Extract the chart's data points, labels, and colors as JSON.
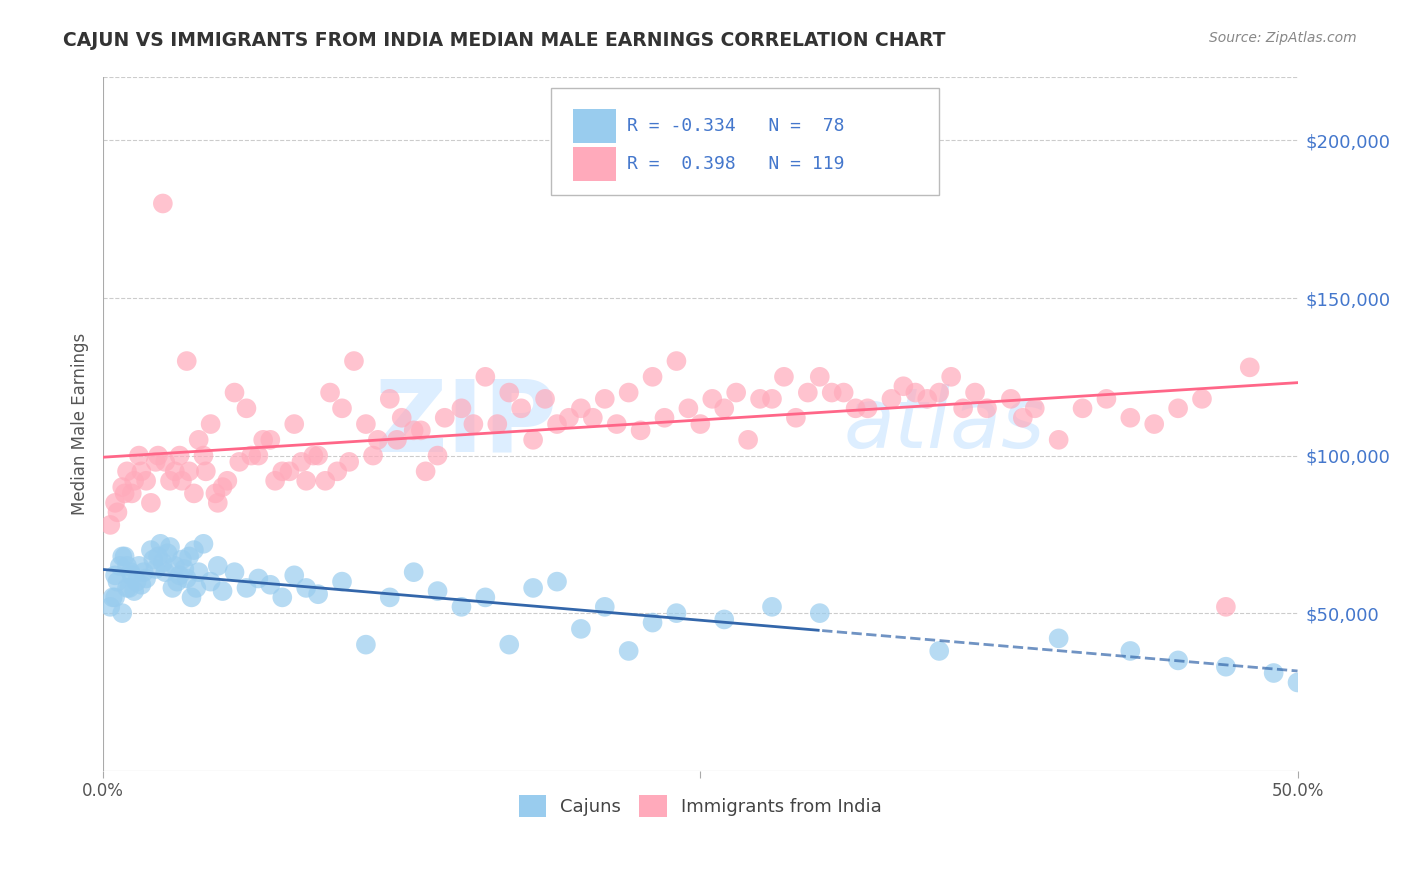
{
  "title": "CAJUN VS IMMIGRANTS FROM INDIA MEDIAN MALE EARNINGS CORRELATION CHART",
  "source_text": "Source: ZipAtlas.com",
  "ylabel": "Median Male Earnings",
  "ytick_values": [
    50000,
    100000,
    150000,
    200000
  ],
  "xlim": [
    0.0,
    50.0
  ],
  "ylim": [
    0,
    220000
  ],
  "cajun_R": -0.334,
  "cajun_N": 78,
  "india_R": 0.398,
  "india_N": 119,
  "cajun_color": "#99CCEE",
  "india_color": "#FFAABB",
  "cajun_line_color": "#3366AA",
  "india_line_color": "#FF6688",
  "background_color": "#FFFFFF",
  "grid_color": "#CCCCCC",
  "title_color": "#333333",
  "axis_label_color": "#4477CC",
  "watermark_color": "#DDEEFF",
  "legend_text_color": "#4477CC",
  "cajun_scatter_x": [
    0.3,
    0.4,
    0.5,
    0.5,
    0.6,
    0.7,
    0.8,
    0.8,
    0.9,
    1.0,
    1.0,
    1.1,
    1.15,
    1.2,
    1.3,
    1.4,
    1.5,
    1.6,
    1.7,
    1.8,
    2.0,
    2.1,
    2.2,
    2.3,
    2.4,
    2.5,
    2.6,
    2.7,
    2.8,
    2.9,
    3.0,
    3.1,
    3.2,
    3.3,
    3.4,
    3.5,
    3.6,
    3.7,
    3.8,
    3.9,
    4.0,
    4.2,
    4.5,
    4.8,
    5.0,
    5.5,
    6.0,
    6.5,
    7.0,
    7.5,
    8.0,
    8.5,
    9.0,
    10.0,
    11.0,
    12.0,
    13.0,
    14.0,
    15.0,
    16.0,
    17.0,
    18.0,
    19.0,
    20.0,
    22.0,
    24.0,
    26.0,
    28.0,
    30.0,
    35.0,
    40.0,
    43.0,
    45.0,
    47.0,
    49.0,
    50.0,
    21.0,
    23.0
  ],
  "cajun_scatter_y": [
    52000,
    55000,
    55000,
    62000,
    60000,
    65000,
    50000,
    68000,
    68000,
    58000,
    65000,
    58000,
    63000,
    62000,
    57000,
    60000,
    65000,
    59000,
    63000,
    61000,
    70000,
    67000,
    64000,
    68000,
    72000,
    66000,
    63000,
    69000,
    71000,
    58000,
    65000,
    60000,
    62000,
    67000,
    64000,
    61000,
    68000,
    55000,
    70000,
    58000,
    63000,
    72000,
    60000,
    65000,
    57000,
    63000,
    58000,
    61000,
    59000,
    55000,
    62000,
    58000,
    56000,
    60000,
    40000,
    55000,
    63000,
    57000,
    52000,
    55000,
    40000,
    58000,
    60000,
    45000,
    38000,
    50000,
    48000,
    52000,
    50000,
    38000,
    42000,
    38000,
    35000,
    33000,
    31000,
    28000,
    52000,
    47000
  ],
  "india_scatter_x": [
    0.3,
    0.5,
    0.6,
    0.8,
    0.9,
    1.0,
    1.2,
    1.3,
    1.5,
    1.6,
    1.8,
    2.0,
    2.2,
    2.3,
    2.5,
    2.6,
    2.8,
    3.0,
    3.2,
    3.3,
    3.5,
    3.6,
    3.8,
    4.0,
    4.2,
    4.3,
    4.5,
    4.7,
    4.8,
    5.0,
    5.2,
    5.5,
    5.7,
    6.0,
    6.2,
    6.5,
    6.7,
    7.0,
    7.2,
    7.5,
    7.8,
    8.0,
    8.3,
    8.5,
    8.8,
    9.0,
    9.3,
    9.5,
    9.8,
    10.0,
    10.3,
    10.5,
    11.0,
    11.3,
    11.5,
    12.0,
    12.3,
    12.5,
    13.0,
    13.3,
    13.5,
    14.0,
    14.3,
    15.0,
    15.5,
    16.0,
    16.5,
    17.0,
    17.5,
    18.0,
    18.5,
    19.0,
    19.5,
    20.0,
    20.5,
    21.0,
    21.5,
    22.0,
    22.5,
    23.0,
    23.5,
    24.0,
    24.5,
    25.0,
    25.5,
    26.0,
    26.5,
    27.0,
    27.5,
    28.0,
    28.5,
    29.0,
    29.5,
    30.0,
    30.5,
    31.0,
    31.5,
    32.0,
    33.0,
    33.5,
    34.0,
    34.5,
    35.0,
    35.5,
    36.0,
    36.5,
    37.0,
    38.0,
    38.5,
    39.0,
    40.0,
    41.0,
    42.0,
    43.0,
    44.0,
    45.0,
    46.0,
    47.0,
    48.0
  ],
  "india_scatter_y": [
    78000,
    85000,
    82000,
    90000,
    88000,
    95000,
    88000,
    92000,
    100000,
    95000,
    92000,
    85000,
    98000,
    100000,
    180000,
    98000,
    92000,
    95000,
    100000,
    92000,
    130000,
    95000,
    88000,
    105000,
    100000,
    95000,
    110000,
    88000,
    85000,
    90000,
    92000,
    120000,
    98000,
    115000,
    100000,
    100000,
    105000,
    105000,
    92000,
    95000,
    95000,
    110000,
    98000,
    92000,
    100000,
    100000,
    92000,
    120000,
    95000,
    115000,
    98000,
    130000,
    110000,
    100000,
    105000,
    118000,
    105000,
    112000,
    108000,
    108000,
    95000,
    100000,
    112000,
    115000,
    110000,
    125000,
    110000,
    120000,
    115000,
    105000,
    118000,
    110000,
    112000,
    115000,
    112000,
    118000,
    110000,
    120000,
    108000,
    125000,
    112000,
    130000,
    115000,
    110000,
    118000,
    115000,
    120000,
    105000,
    118000,
    118000,
    125000,
    112000,
    120000,
    125000,
    120000,
    120000,
    115000,
    115000,
    118000,
    122000,
    120000,
    118000,
    120000,
    125000,
    115000,
    120000,
    115000,
    118000,
    112000,
    115000,
    105000,
    115000,
    118000,
    112000,
    110000,
    115000,
    118000,
    52000,
    128000
  ]
}
